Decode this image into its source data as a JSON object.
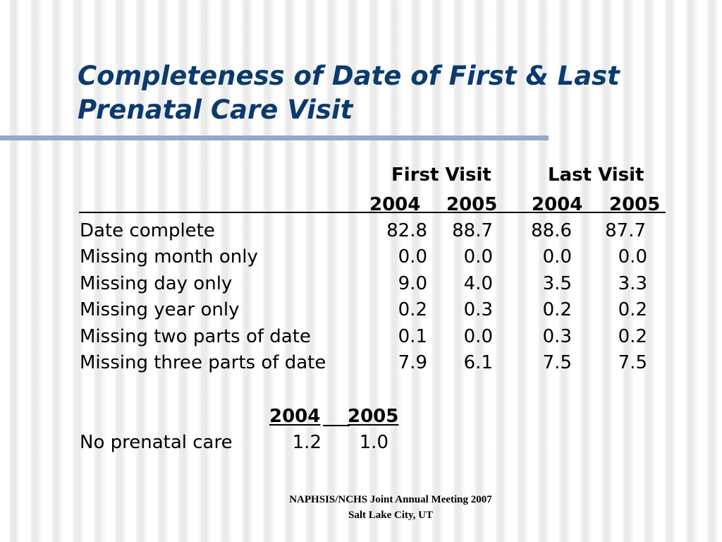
{
  "title": {
    "line1": "Completeness of Date of First & Last",
    "line2": "Prenatal Care Visit"
  },
  "table": {
    "group_headers": [
      "First Visit",
      "Last Visit"
    ],
    "year_headers": [
      "2004",
      "2005",
      "2004",
      "2005"
    ],
    "rows": [
      {
        "label": "Date complete",
        "values": [
          "82.8",
          "88.7",
          "88.6",
          "87.7"
        ]
      },
      {
        "label": "Missing month only",
        "values": [
          "0.0",
          "0.0",
          "0.0",
          "0.0"
        ]
      },
      {
        "label": "Missing day only",
        "values": [
          "9.0",
          "4.0",
          "3.5",
          "3.3"
        ]
      },
      {
        "label": "Missing year only",
        "values": [
          "0.2",
          "0.3",
          "0.2",
          "0.2"
        ]
      },
      {
        "label": "Missing two parts of date",
        "values": [
          "0.1",
          "0.0",
          "0.3",
          "0.2"
        ]
      },
      {
        "label": "Missing three parts of date",
        "values": [
          "7.9",
          "6.1",
          "7.5",
          "7.5"
        ]
      }
    ]
  },
  "no_care": {
    "year_headers": [
      "2004",
      "2005"
    ],
    "label": "No prenatal care",
    "values": [
      "1.2",
      "1.0"
    ]
  },
  "footer": {
    "line1": "NAPHSIS/NCHS Joint Annual Meeting 2007",
    "line2": "Salt Lake City, UT"
  }
}
